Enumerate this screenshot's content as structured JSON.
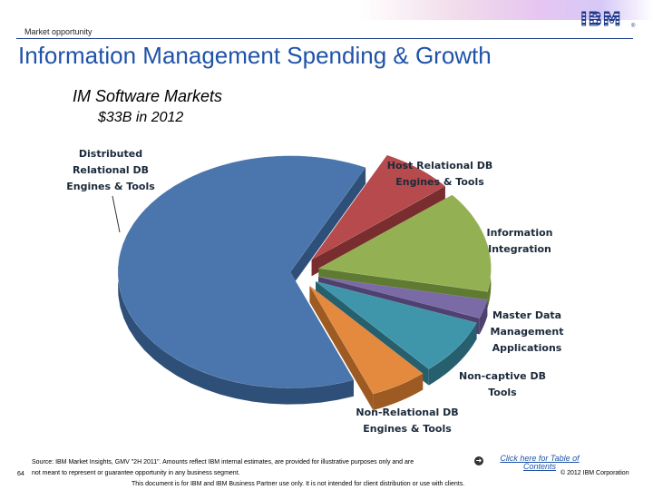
{
  "header": {
    "section_label": "Market opportunity",
    "logo_text": "IBM",
    "registered_mark": "®",
    "page_title": "Information Management Spending & Growth"
  },
  "chart_data": {
    "type": "pie",
    "title": "IM Software Markets",
    "subtitle": "$33B in 2012",
    "slices": [
      {
        "label": [
          "Distributed",
          "Relational DB",
          "Engines & Tools"
        ],
        "share": 0.632,
        "color": "#4a76ad",
        "side": "#2e4f78"
      },
      {
        "label": [
          "Host Relational DB",
          "Engines & Tools"
        ],
        "share": 0.069,
        "color": "#b64a4c",
        "side": "#7a2d2f"
      },
      {
        "label": [
          "Information",
          "Integration"
        ],
        "share": 0.141,
        "color": "#93b153",
        "side": "#5f7a31"
      },
      {
        "label": [
          "Master Data",
          "Management",
          "Applications"
        ],
        "share": 0.026,
        "color": "#7a6aa5",
        "side": "#4e416f"
      },
      {
        "label": [
          "Non-captive DB",
          "Tools"
        ],
        "share": 0.078,
        "color": "#3f96ab",
        "side": "#265f6e"
      },
      {
        "label": [
          "Non-Relational DB",
          "Engines & Tools"
        ],
        "share": 0.054,
        "color": "#e48a3e",
        "side": "#9d5a22"
      }
    ]
  },
  "footer": {
    "page_number": "64",
    "source_line1": "Source: IBM Market Insights, GMV \"2H 2011\". Amounts reflect IBM internal estimates, are provided for illustrative purposes only and are",
    "source_line2": "not meant to represent or guarantee opportunity in any business segment.",
    "toc_icon": "arrow-icon",
    "toc_link": "Click here for Table of Contents",
    "copyright": "© 2012 IBM Corporation",
    "disclaimer": "This document is for IBM and IBM Business Partner use only. It is not intended for client distribution or use with clients."
  }
}
